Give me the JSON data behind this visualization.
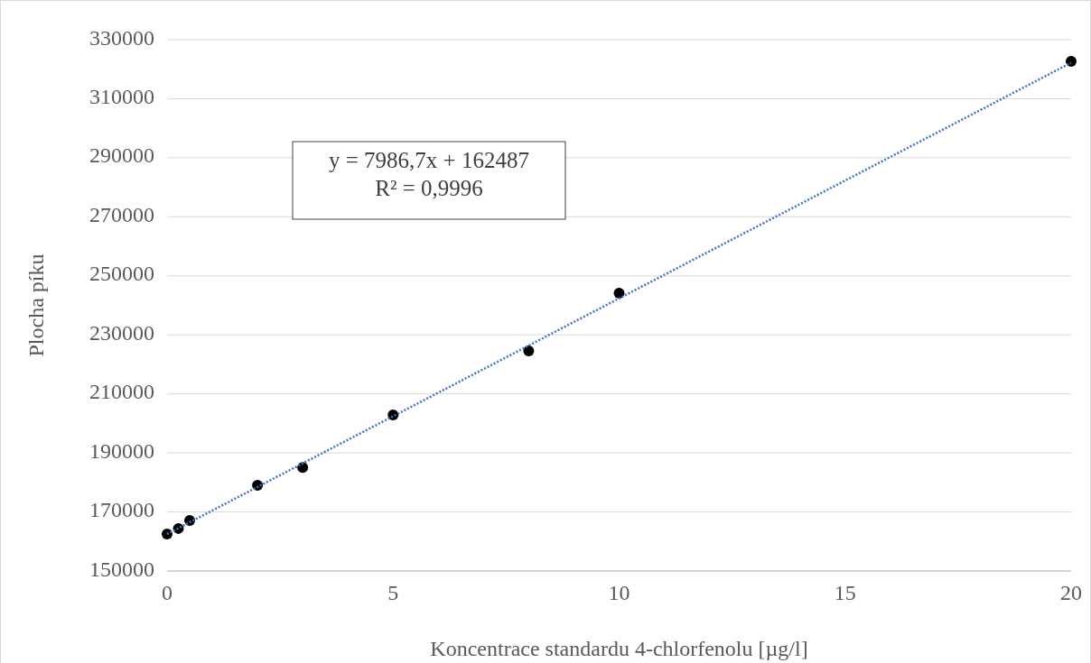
{
  "chart_data": {
    "type": "scatter",
    "xlabel": "Koncentrace standardu 4-chlorfenolu [µg/l]",
    "ylabel": "Plocha píku",
    "xlim": [
      0,
      20
    ],
    "xticks": [
      0,
      5,
      10,
      15,
      20
    ],
    "ylim": [
      150000,
      330000
    ],
    "yticks": [
      150000,
      170000,
      190000,
      210000,
      230000,
      250000,
      270000,
      290000,
      310000,
      330000
    ],
    "grid": "y",
    "marker": "circle",
    "annotations": [
      "y = 7986,7x + 162487",
      "R² = 0,9996"
    ],
    "series": [
      {
        "color": "#000000",
        "x": [
          0,
          0.25,
          0.5,
          2,
          3,
          5,
          8,
          10,
          20
        ],
        "values": [
          162500,
          164400,
          167100,
          179000,
          185100,
          202900,
          224600,
          244100,
          322700
        ]
      },
      {
        "type": "line",
        "color": "#4472c4",
        "line_style": "dotted",
        "marker": "none",
        "x": [
          0,
          20
        ],
        "values": [
          162500,
          322200
        ]
      }
    ]
  }
}
